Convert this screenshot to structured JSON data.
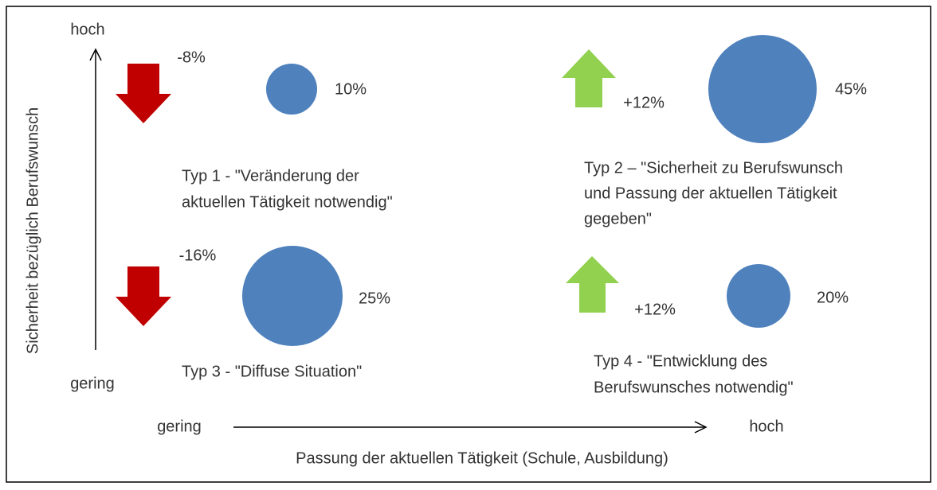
{
  "axes": {
    "y": {
      "label": "Sicherheit bezüglich Berufswunsch",
      "high": "hoch",
      "low": "gering"
    },
    "x": {
      "label": "Passung der aktuellen Tätigkeit (Schule, Ausbildung)",
      "high": "hoch",
      "low": "gering"
    }
  },
  "quadrants": [
    {
      "change": "-8%",
      "share": "10%",
      "title_lines": [
        "Typ 1 - \"Veränderung der",
        "aktuellen Tätigkeit notwendig\""
      ]
    },
    {
      "change": "+12%",
      "share": "45%",
      "title_lines": [
        "Typ 2 – \"Sicherheit zu Berufswunsch",
        "und Passung der aktuellen Tätigkeit",
        "gegeben\""
      ]
    },
    {
      "change": "-16%",
      "share": "25%",
      "title_lines": [
        "Typ 3 - \"Diffuse Situation\""
      ]
    },
    {
      "change": "+12%",
      "share": "20%",
      "title_lines": [
        "Typ 4 - \"Entwicklung des",
        "Berufswunsches notwendig\""
      ]
    }
  ]
}
